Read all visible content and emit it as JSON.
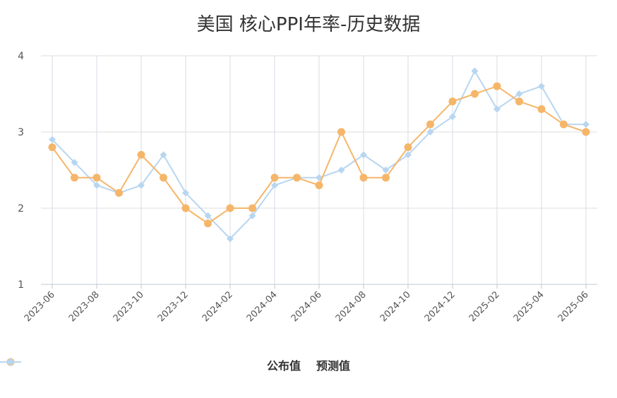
{
  "chart_data": {
    "type": "line",
    "title": "美国 核心PPI年率-历史数据",
    "x": [
      "2023-06",
      "2023-07",
      "2023-08",
      "2023-09",
      "2023-10",
      "2023-11",
      "2023-12",
      "2024-01",
      "2024-02",
      "2024-03",
      "2024-04",
      "2024-05",
      "2024-06",
      "2024-07",
      "2024-08",
      "2024-09",
      "2024-10",
      "2024-11",
      "2024-12",
      "2025-01",
      "2025-02",
      "2025-03",
      "2025-04",
      "2025-05",
      "2025-06"
    ],
    "x_tick_labels": [
      "2023-06",
      "2023-08",
      "2023-10",
      "2023-12",
      "2024-02",
      "2024-04",
      "2024-06",
      "2024-08",
      "2024-10",
      "2024-12",
      "2025-02",
      "2025-04",
      "2025-06"
    ],
    "y_ticks": [
      1,
      2,
      3,
      4
    ],
    "ylim": [
      1,
      4
    ],
    "grid": true,
    "legend_position": "bottom",
    "series": [
      {
        "name": "公布值",
        "color": "#f5b66a",
        "marker": "circle",
        "values": [
          2.8,
          2.4,
          2.4,
          2.2,
          2.7,
          2.4,
          2.0,
          1.8,
          2.0,
          2.0,
          2.4,
          2.4,
          2.3,
          3.0,
          2.4,
          2.4,
          2.8,
          3.1,
          3.4,
          3.5,
          3.6,
          3.4,
          3.3,
          3.1,
          3.0
        ]
      },
      {
        "name": "预测值",
        "color": "#b8d6f0",
        "marker": "diamond",
        "values": [
          2.9,
          2.6,
          2.3,
          2.2,
          2.3,
          2.7,
          2.2,
          1.9,
          1.6,
          1.9,
          2.3,
          2.4,
          2.4,
          2.5,
          2.7,
          2.5,
          2.7,
          3.0,
          3.2,
          3.8,
          3.3,
          3.5,
          3.6,
          3.1,
          3.1
        ]
      }
    ]
  }
}
